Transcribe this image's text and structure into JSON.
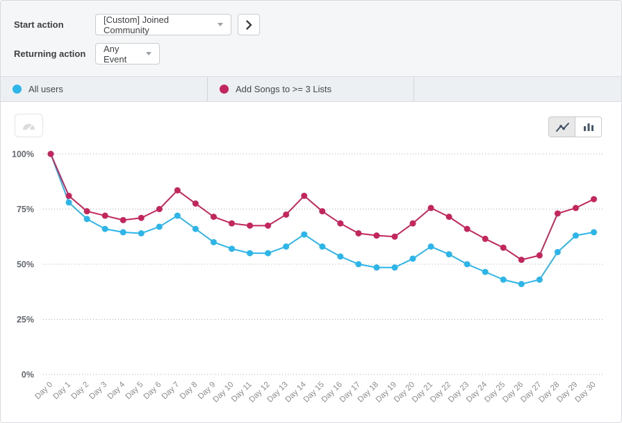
{
  "header": {
    "start_action_label": "Start action",
    "start_action_value": "[Custom] Joined Community",
    "returning_action_label": "Returning action",
    "returning_action_value": "Any Event"
  },
  "legend": {
    "items": [
      {
        "label": "All users",
        "color": "#2cb5e8"
      },
      {
        "label": "Add Songs to >= 3 Lists",
        "color": "#c2265c"
      }
    ]
  },
  "toolbar": {
    "modes": [
      "line",
      "bar"
    ],
    "selected_mode": "line"
  },
  "chart_data": {
    "type": "line",
    "title": "",
    "xlabel": "",
    "ylabel": "",
    "ylim": [
      0,
      100
    ],
    "grid": "dotted-horizontal",
    "yticks": [
      100,
      75,
      50,
      25,
      0
    ],
    "ytick_labels": [
      "100%",
      "75%",
      "50%",
      "25%",
      "0%"
    ],
    "categories": [
      "Day 0",
      "Day 1",
      "Day 2",
      "Day 3",
      "Day 4",
      "Day 5",
      "Day 6",
      "Day 7",
      "Day 8",
      "Day 9",
      "Day 10",
      "Day 11",
      "Day 12",
      "Day 13",
      "Day 14",
      "Day 15",
      "Day 16",
      "Day 17",
      "Day 18",
      "Day 19",
      "Day 20",
      "Day 21",
      "Day 22",
      "Day 23",
      "Day 24",
      "Day 25",
      "Day 26",
      "Day 27",
      "Day 28",
      "Day 29",
      "Day 30"
    ],
    "series": [
      {
        "name": "All users",
        "color": "#2cb5e8",
        "values": [
          100,
          78,
          70.5,
          66,
          64.5,
          64,
          67,
          72,
          66,
          60,
          57,
          55,
          55,
          58,
          63.5,
          58,
          53.5,
          50,
          48.5,
          48.5,
          52.5,
          58,
          54.5,
          50,
          46.5,
          43,
          41,
          43,
          55.5,
          63,
          64.5
        ]
      },
      {
        "name": "Add Songs to >= 3 Lists",
        "color": "#c2265c",
        "values": [
          100,
          81,
          74,
          72,
          70,
          71,
          75,
          83.5,
          77.5,
          71.5,
          68.5,
          67.5,
          67.5,
          72.5,
          81,
          74,
          68.5,
          64,
          63,
          62.5,
          68.5,
          75.5,
          71.5,
          66,
          61.5,
          57.5,
          52,
          54,
          73,
          75.5,
          79.5
        ]
      }
    ]
  }
}
